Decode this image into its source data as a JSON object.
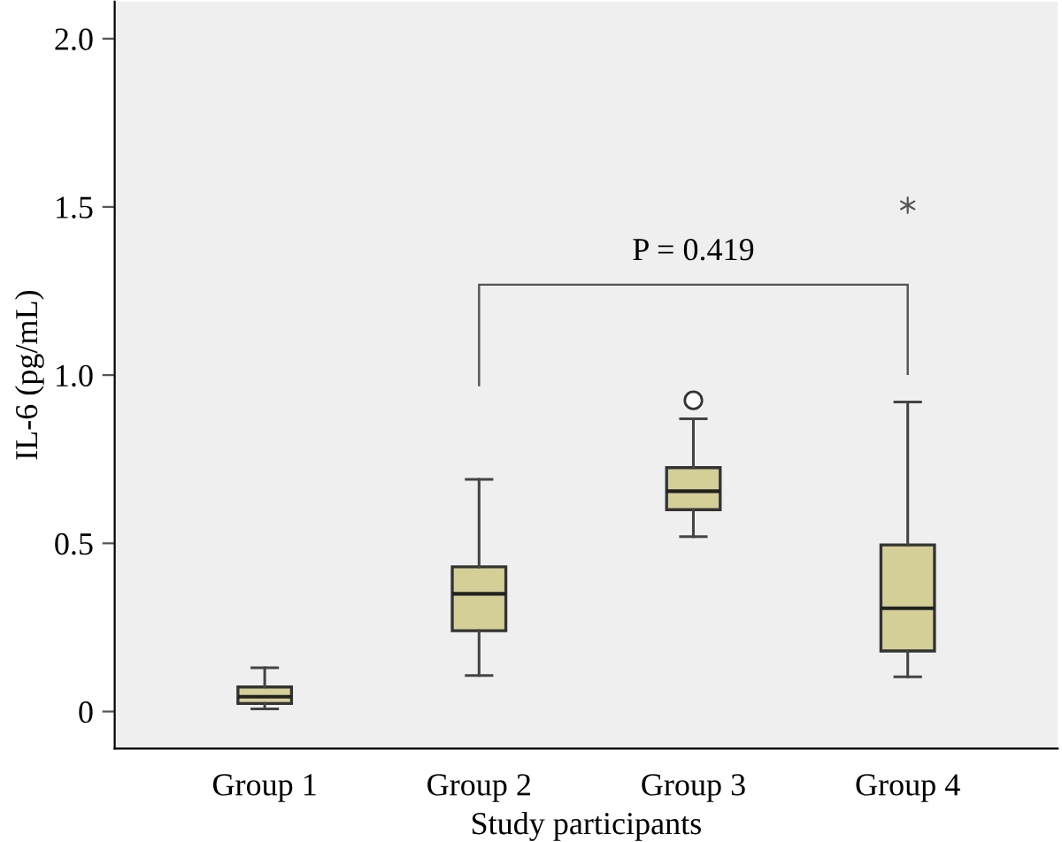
{
  "chart_data": {
    "type": "box",
    "xlabel": "Study participants",
    "ylabel": "IL-6 (pg/mL)",
    "categories": [
      "Group 1",
      "Group 2",
      "Group 3",
      "Group 4"
    ],
    "series": [
      {
        "type": "box",
        "color": "#d4cf97",
        "boxes": [
          {
            "low": 0.008,
            "q1": 0.024,
            "median": 0.044,
            "q3": 0.073,
            "high": 0.13
          },
          {
            "low": 0.107,
            "q1": 0.24,
            "median": 0.35,
            "q3": 0.43,
            "high": 0.69
          },
          {
            "low": 0.52,
            "q1": 0.6,
            "median": 0.655,
            "q3": 0.725,
            "high": 0.87,
            "outliers": [
              0.925
            ]
          },
          {
            "low": 0.103,
            "q1": 0.18,
            "median": 0.307,
            "q3": 0.495,
            "high": 0.92
          }
        ]
      },
      {
        "type": "scatter",
        "x": [
          "Group 4"
        ],
        "values": [
          1.505
        ],
        "marker": "cross",
        "color": "#555555"
      }
    ],
    "ylim": [
      -0.11,
      2.11
    ],
    "yticks": [
      {
        "value": 0,
        "label": "0"
      },
      {
        "value": 0.5,
        "label": "0.5"
      },
      {
        "value": 1.0,
        "label": "1.0"
      },
      {
        "value": 1.5,
        "label": "1.5"
      },
      {
        "value": 2.0,
        "label": "2.0"
      }
    ],
    "annotations": [
      "P = 0.419"
    ],
    "grid": false,
    "legend": false
  }
}
